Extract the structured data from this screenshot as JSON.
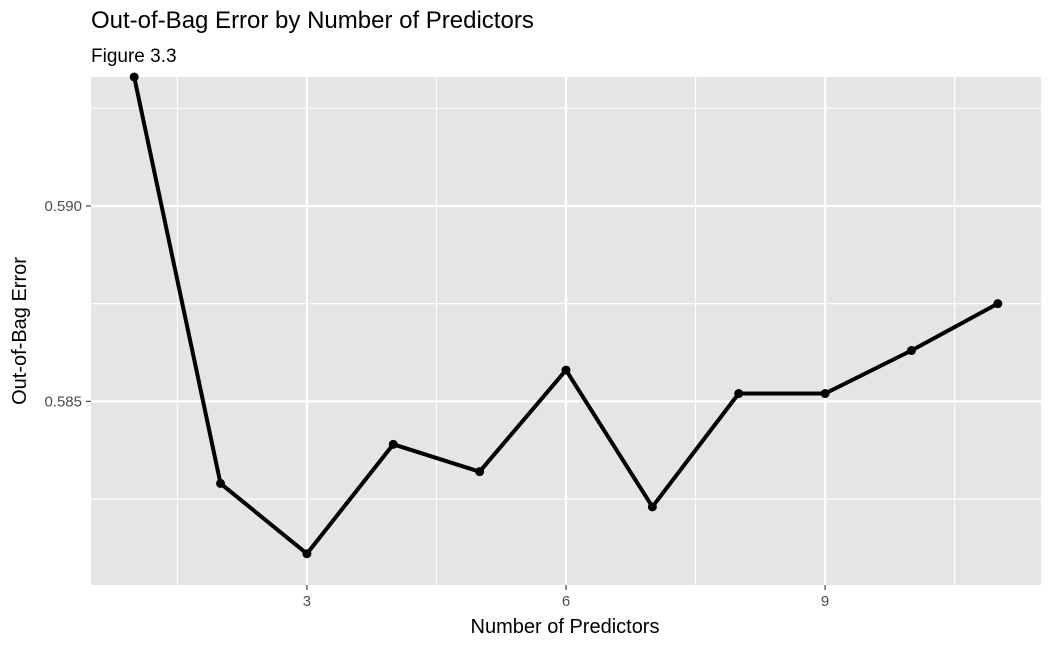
{
  "chart_data": {
    "type": "line",
    "title": "Out-of-Bag Error by Number of Predictors",
    "subtitle": "Figure 3.3",
    "xlabel": "Number of Predictors",
    "ylabel": "Out-of-Bag Error",
    "x_ticks": [
      3,
      6,
      9
    ],
    "y_ticks": [
      0.585,
      0.59
    ],
    "y_tick_labels": [
      "0.585",
      "0.590"
    ],
    "xlim": [
      0.5,
      11.5
    ],
    "ylim": [
      0.5803,
      0.5933
    ],
    "grid": true,
    "legend": "none",
    "series": [
      {
        "x": [
          1,
          2,
          3,
          4,
          5,
          6,
          7,
          8,
          9,
          10,
          11
        ],
        "y": [
          0.5933,
          0.5829,
          0.5811,
          0.5839,
          0.5832,
          0.5858,
          0.5823,
          0.5852,
          0.5852,
          0.5863,
          0.5875
        ]
      }
    ],
    "colors": {
      "panel": "#e5e5e5",
      "grid_major": "#ffffff",
      "line": "#000000"
    }
  }
}
